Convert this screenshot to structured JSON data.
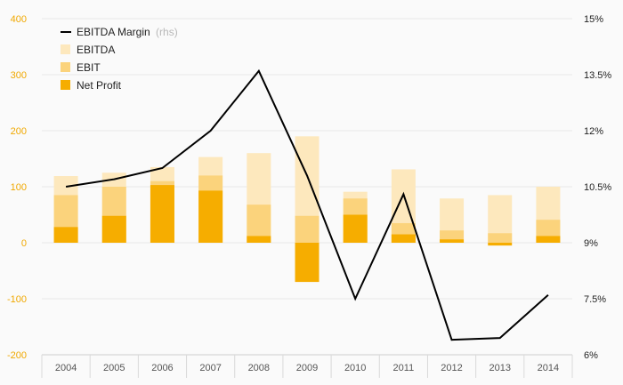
{
  "chart_data": {
    "type": "bar",
    "stacking": "overlapped",
    "categories": [
      "2004",
      "2005",
      "2006",
      "2007",
      "2008",
      "2009",
      "2010",
      "2011",
      "2012",
      "2013",
      "2014"
    ],
    "series": [
      {
        "name": "EBITDA",
        "axis": "left",
        "kind": "bar",
        "color": "#fde8bd",
        "values": [
          119,
          125,
          135,
          153,
          160,
          190,
          91,
          131,
          79,
          85,
          100
        ]
      },
      {
        "name": "EBIT",
        "axis": "left",
        "kind": "bar",
        "color": "#fbd37c",
        "values": [
          85,
          100,
          110,
          120,
          68,
          48,
          79,
          35,
          22,
          17,
          41
        ]
      },
      {
        "name": "Net Profit",
        "axis": "left",
        "kind": "bar",
        "color": "#f6ad00",
        "values": [
          28,
          48,
          103,
          93,
          12,
          -70,
          50,
          15,
          6,
          -5,
          12
        ]
      },
      {
        "name": "EBITDA Margin",
        "name_suffix": "(rhs)",
        "axis": "right",
        "kind": "line",
        "color": "#000000",
        "values": [
          10.5,
          10.7,
          11.0,
          12.0,
          13.6,
          10.8,
          7.5,
          10.3,
          6.4,
          6.45,
          7.6
        ]
      }
    ],
    "yaxis_left": {
      "min": -200,
      "max": 400,
      "ticks": [
        "-200",
        "-100",
        "0",
        "100",
        "200",
        "300",
        "400"
      ]
    },
    "yaxis_right": {
      "min": 6,
      "max": 15,
      "ticks": [
        "6%",
        "7.5%",
        "9%",
        "10.5%",
        "12%",
        "13.5%",
        "15%"
      ]
    },
    "grid": true,
    "legend": "top-left",
    "title": "",
    "xlabel": "",
    "ylabel": ""
  }
}
